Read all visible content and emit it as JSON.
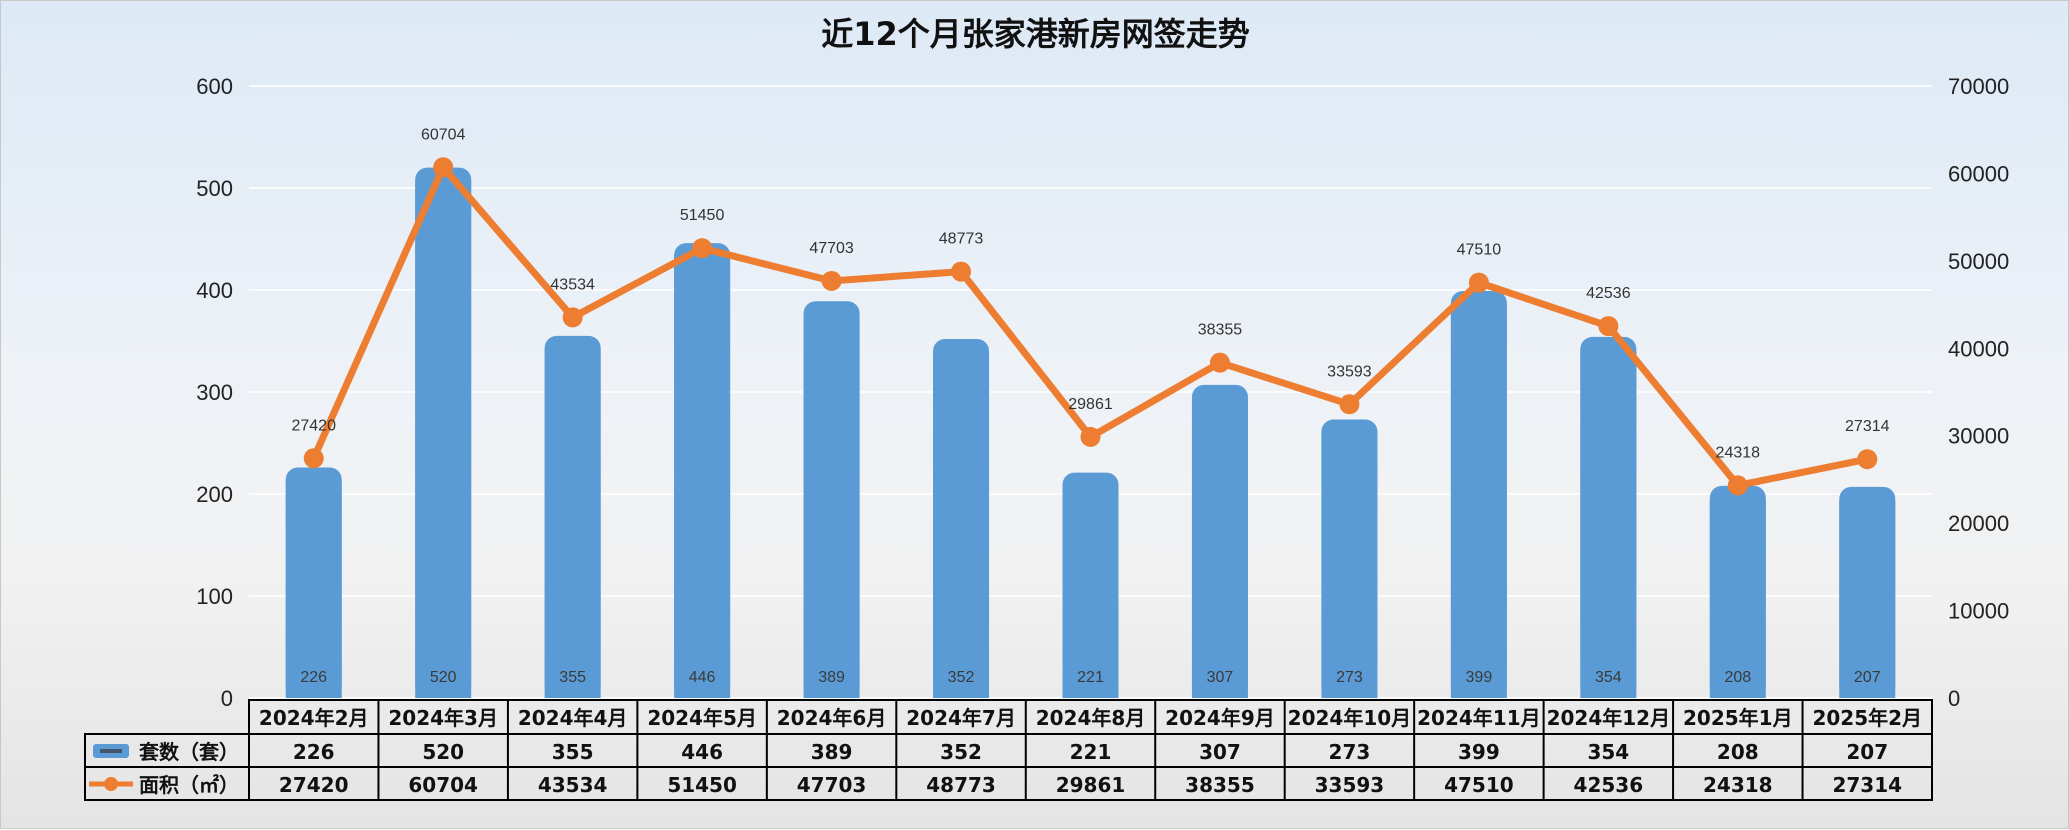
{
  "chart_data": {
    "type": "bar",
    "title": "近12个月张家港新房网签走势",
    "categories": [
      "2024年2月",
      "2024年3月",
      "2024年4月",
      "2024年5月",
      "2024年6月",
      "2024年7月",
      "2024年8月",
      "2024年9月",
      "2024年10月",
      "2024年11月",
      "2024年12月",
      "2025年1月",
      "2025年2月"
    ],
    "series": [
      {
        "name": "套数（套）",
        "type": "bar",
        "axis": "left",
        "color": "#5b9bd5",
        "values": [
          226,
          520,
          355,
          446,
          389,
          352,
          221,
          307,
          273,
          399,
          354,
          208,
          207
        ]
      },
      {
        "name": "面积（㎡）",
        "type": "line",
        "axis": "right",
        "color": "#ed7d31",
        "values": [
          27420,
          60704,
          43534,
          51450,
          47703,
          48773,
          29861,
          38355,
          33593,
          47510,
          42536,
          24318,
          27314
        ]
      }
    ],
    "y_left": {
      "min": 0,
      "max": 600,
      "ticks": [
        0,
        100,
        200,
        300,
        400,
        500,
        600
      ]
    },
    "y_right": {
      "min": 0,
      "max": 70000,
      "ticks": [
        0,
        10000,
        20000,
        30000,
        40000,
        50000,
        60000,
        70000
      ]
    },
    "grid": true,
    "legend": "data-table-bottom"
  }
}
